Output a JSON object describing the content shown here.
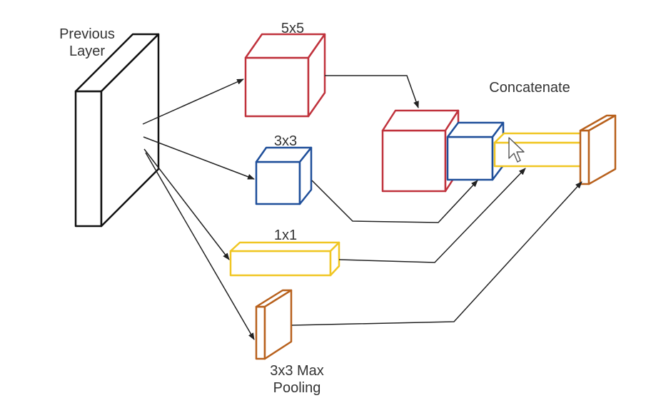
{
  "labels": {
    "previous_layer": "Previous\nLayer",
    "conv5x5": "5x5",
    "conv3x3": "3x3",
    "conv1x1": "1x1",
    "maxpool": "3x3 Max\nPooling",
    "concatenate": "Concatenate"
  },
  "colors": {
    "conv5x5": "#c0323c",
    "conv3x3": "#1f4f9a",
    "conv1x1": "#f0c623",
    "maxpool": "#b8611d",
    "previous_layer": "#111111",
    "arrow": "#222222"
  },
  "icons": {
    "cursor": "mouse-pointer-icon"
  }
}
